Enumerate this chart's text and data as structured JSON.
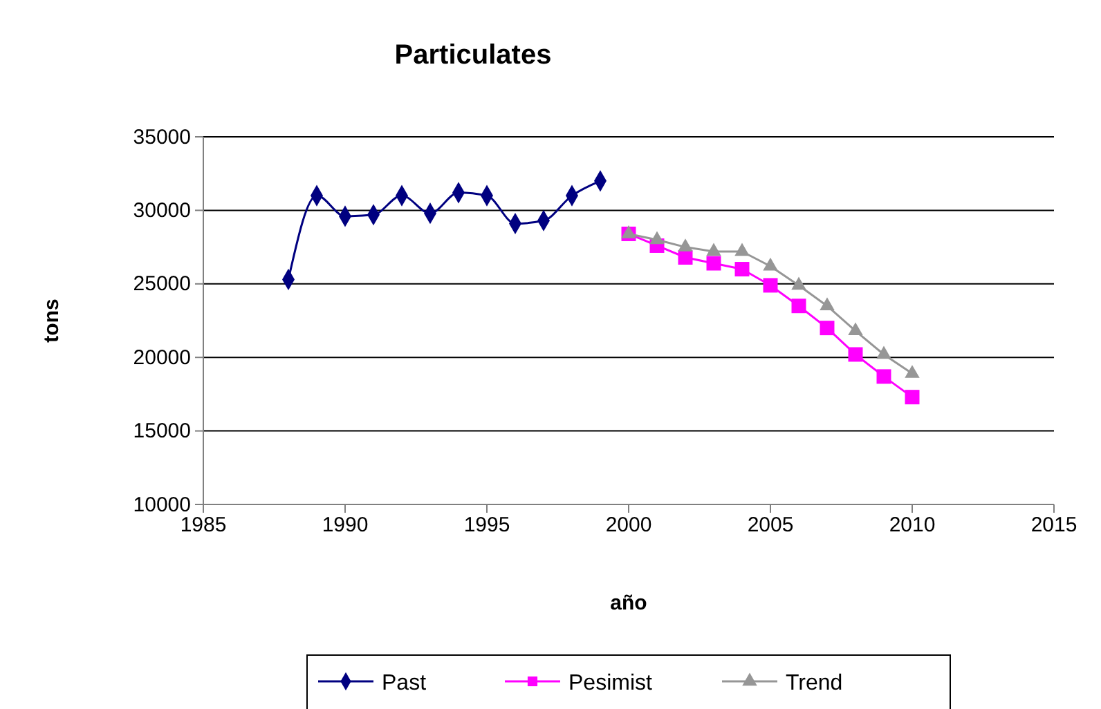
{
  "chart_data": {
    "type": "line",
    "title": "Particulates",
    "xlabel": "año",
    "ylabel": "tons",
    "xlim": [
      1985,
      2015
    ],
    "xticks": [
      1985,
      1990,
      1995,
      2000,
      2005,
      2010,
      2015
    ],
    "ylim": [
      10000,
      35000
    ],
    "yticks": [
      10000,
      15000,
      20000,
      25000,
      30000,
      35000
    ],
    "grid": "y",
    "legend": "bottom",
    "series": [
      {
        "name": "Past",
        "color": "#000080",
        "marker": "diamond",
        "x": [
          1988,
          1989,
          1990,
          1991,
          1992,
          1993,
          1994,
          1995,
          1996,
          1997,
          1998,
          1999
        ],
        "values": [
          25300,
          31000,
          29600,
          29700,
          31000,
          29800,
          31200,
          31000,
          29100,
          29300,
          31000,
          32000
        ]
      },
      {
        "name": "Pesimist",
        "color": "#ff00ff",
        "marker": "square",
        "x": [
          2000,
          2001,
          2002,
          2003,
          2004,
          2005,
          2006,
          2007,
          2008,
          2009,
          2010
        ],
        "values": [
          28400,
          27600,
          26800,
          26400,
          26000,
          24900,
          23500,
          22000,
          20200,
          18700,
          17300
        ]
      },
      {
        "name": "Trend",
        "color": "#969696",
        "marker": "triangle",
        "x": [
          2000,
          2001,
          2002,
          2003,
          2004,
          2005,
          2006,
          2007,
          2008,
          2009,
          2010
        ],
        "values": [
          28400,
          28000,
          27500,
          27200,
          27200,
          26200,
          24900,
          23500,
          21800,
          20200,
          18900
        ]
      }
    ]
  }
}
